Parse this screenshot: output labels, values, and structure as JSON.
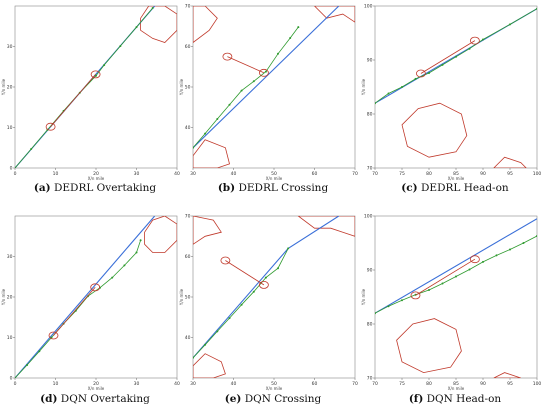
{
  "colors": {
    "reference": "#3a6fd8",
    "trajectory": "#2e9a2e",
    "dots": "#2e9a2e",
    "obstacle": "#c0392b",
    "encounter": "#c0392b"
  },
  "chart_data": [
    {
      "type": "line",
      "caption_tag": "(a)",
      "caption": "DEDRL Overtaking",
      "xlabel": "X/n mile",
      "ylabel": "Y/n mile",
      "xlim": [
        0,
        40
      ],
      "ylim": [
        0,
        40
      ],
      "xticks": [
        "0",
        "10",
        "20",
        "30",
        "40"
      ],
      "yticks": [
        "0",
        "10",
        "20",
        "30"
      ],
      "series": [
        {
          "role": "reference",
          "x": [
            0,
            34.5
          ],
          "y": [
            0,
            40
          ]
        },
        {
          "role": "trajectory",
          "x": [
            0,
            4,
            8,
            12,
            16,
            20,
            22,
            26,
            30,
            34
          ],
          "y": [
            0,
            4.7,
            9.4,
            14.1,
            18.6,
            22.8,
            25.4,
            30.1,
            34.8,
            39.5
          ]
        },
        {
          "role": "encounter",
          "x": [
            8.8,
            19.9
          ],
          "y": [
            10.2,
            23.1
          ]
        }
      ],
      "encounter_circles": [
        [
          8.8,
          10.2
        ],
        [
          19.9,
          23.1
        ]
      ],
      "obstacles": [
        [
          [
            31,
            37
          ],
          [
            33,
            40
          ],
          [
            37,
            40
          ],
          [
            40,
            38
          ],
          [
            40,
            34
          ],
          [
            37,
            31
          ],
          [
            34,
            32
          ],
          [
            31,
            34
          ]
        ]
      ]
    },
    {
      "type": "line",
      "caption_tag": "(b)",
      "caption": "DEDRL Crossing",
      "xlabel": "X/n mile",
      "ylabel": "Y/n mile",
      "xlim": [
        30,
        70
      ],
      "ylim": [
        30,
        70
      ],
      "xticks": [
        "30",
        "40",
        "50",
        "60",
        "70"
      ],
      "yticks": [
        "40",
        "50",
        "60",
        "70"
      ],
      "series": [
        {
          "role": "reference",
          "x": [
            30,
            66
          ],
          "y": [
            35,
            70
          ]
        },
        {
          "role": "trajectory",
          "x": [
            30,
            33,
            36,
            39,
            42,
            45,
            48,
            51,
            54,
            56
          ],
          "y": [
            35,
            38.5,
            42.1,
            45.6,
            49.1,
            51.4,
            53.8,
            58.2,
            62.1,
            64.8
          ]
        },
        {
          "role": "encounter",
          "x": [
            38.5,
            47.5
          ],
          "y": [
            57.5,
            53.5
          ]
        }
      ],
      "encounter_circles": [
        [
          38.5,
          57.5
        ],
        [
          47.5,
          53.5
        ]
      ],
      "obstacles": [
        [
          [
            30,
            61
          ],
          [
            34,
            64
          ],
          [
            36,
            67
          ],
          [
            33,
            70
          ],
          [
            30,
            70
          ]
        ],
        [
          [
            60,
            70
          ],
          [
            63,
            67
          ],
          [
            67,
            68
          ],
          [
            70,
            66
          ],
          [
            70,
            70
          ]
        ],
        [
          [
            30,
            33
          ],
          [
            33,
            37
          ],
          [
            38,
            35
          ],
          [
            39,
            31
          ],
          [
            36,
            30
          ],
          [
            30,
            30
          ]
        ]
      ]
    },
    {
      "type": "line",
      "caption_tag": "(c)",
      "caption": "DEDRL Head-on",
      "xlabel": "X/n mile",
      "ylabel": "Y/n mile",
      "xlim": [
        70,
        100
      ],
      "ylim": [
        70,
        100
      ],
      "xticks": [
        "70",
        "75",
        "80",
        "85",
        "90",
        "95",
        "100"
      ],
      "yticks": [
        "70",
        "80",
        "90",
        "100"
      ],
      "series": [
        {
          "role": "reference",
          "x": [
            70,
            100
          ],
          "y": [
            82,
            99.5
          ]
        },
        {
          "role": "trajectory",
          "x": [
            70,
            72.5,
            75,
            77.5,
            80,
            82.5,
            85,
            87.5,
            90,
            95,
            100
          ],
          "y": [
            82,
            83.8,
            85,
            86.5,
            87.6,
            89.1,
            90.6,
            92.1,
            93.8,
            96.6,
            99.5
          ]
        },
        {
          "role": "encounter",
          "x": [
            78.5,
            88.5
          ],
          "y": [
            87.5,
            93.6
          ]
        }
      ],
      "encounter_circles": [
        [
          78.5,
          87.5
        ],
        [
          88.5,
          93.6
        ]
      ],
      "obstacles": [
        [
          [
            75,
            78
          ],
          [
            78,
            81
          ],
          [
            82,
            82
          ],
          [
            86,
            80
          ],
          [
            87,
            76
          ],
          [
            85,
            73
          ],
          [
            80,
            72
          ],
          [
            76,
            74
          ]
        ],
        [
          [
            92,
            70
          ],
          [
            94,
            72
          ],
          [
            97,
            71
          ],
          [
            98,
            70
          ]
        ]
      ]
    },
    {
      "type": "line",
      "caption_tag": "(d)",
      "caption": "DQN Overtaking",
      "xlabel": "X/n mile",
      "ylabel": "Y/n mile",
      "xlim": [
        0,
        40
      ],
      "ylim": [
        0,
        40
      ],
      "xticks": [
        "0",
        "10",
        "20",
        "30",
        "40"
      ],
      "yticks": [
        "0",
        "10",
        "20",
        "30"
      ],
      "series": [
        {
          "role": "reference",
          "x": [
            0,
            34.5
          ],
          "y": [
            0,
            40
          ]
        },
        {
          "role": "trajectory",
          "x": [
            0,
            3,
            6,
            9,
            12,
            15,
            18,
            21,
            24,
            27,
            30,
            31
          ],
          "y": [
            0,
            3.2,
            6.6,
            10,
            13.4,
            16.6,
            20.2,
            22.3,
            24.8,
            27.8,
            31,
            34
          ]
        },
        {
          "role": "encounter",
          "x": [
            9.5,
            19.8
          ],
          "y": [
            10.5,
            22.4
          ]
        }
      ],
      "encounter_circles": [
        [
          9.5,
          10.5
        ],
        [
          19.8,
          22.4
        ]
      ],
      "obstacles": [
        [
          [
            32,
            36
          ],
          [
            34,
            39
          ],
          [
            37,
            40
          ],
          [
            40,
            38
          ],
          [
            40,
            34
          ],
          [
            37,
            31
          ],
          [
            34,
            31
          ],
          [
            32,
            33
          ]
        ]
      ]
    },
    {
      "type": "line",
      "caption_tag": "(e)",
      "caption": "DQN Crossing",
      "xlabel": "X/n mile",
      "ylabel": "Y/n mile",
      "xlim": [
        30,
        70
      ],
      "ylim": [
        30,
        70
      ],
      "xticks": [
        "30",
        "40",
        "50",
        "60",
        "70"
      ],
      "yticks": [
        "40",
        "50",
        "60",
        "70"
      ],
      "series": [
        {
          "role": "reference",
          "x": [
            30,
            53.5,
            66
          ],
          "y": [
            35,
            62,
            70
          ]
        },
        {
          "role": "trajectory",
          "x": [
            30,
            33,
            36,
            39,
            42,
            45,
            48,
            51,
            53.5
          ],
          "y": [
            35,
            38.2,
            41.5,
            44.8,
            48.1,
            51.3,
            54.8,
            57.1,
            62
          ]
        },
        {
          "role": "encounter",
          "x": [
            38,
            47.5
          ],
          "y": [
            59,
            53
          ]
        }
      ],
      "encounter_circles": [
        [
          38,
          59
        ],
        [
          47.5,
          53
        ]
      ],
      "obstacles": [
        [
          [
            30,
            63
          ],
          [
            33,
            65
          ],
          [
            37,
            66
          ],
          [
            35,
            69
          ],
          [
            30,
            70
          ]
        ],
        [
          [
            56,
            70
          ],
          [
            60,
            67
          ],
          [
            64,
            67
          ],
          [
            67,
            66
          ],
          [
            70,
            65
          ],
          [
            70,
            70
          ]
        ],
        [
          [
            30,
            33
          ],
          [
            33,
            36
          ],
          [
            37,
            34
          ],
          [
            38,
            31
          ],
          [
            35,
            30
          ],
          [
            30,
            30
          ]
        ]
      ]
    },
    {
      "type": "line",
      "caption_tag": "(f)",
      "caption": "DQN Head-on",
      "xlabel": "X/n mile",
      "ylabel": "Y/n mile",
      "xlim": [
        70,
        100
      ],
      "ylim": [
        70,
        100
      ],
      "xticks": [
        "70",
        "75",
        "80",
        "85",
        "90",
        "95",
        "100"
      ],
      "yticks": [
        "70",
        "80",
        "90",
        "100"
      ],
      "series": [
        {
          "role": "reference",
          "x": [
            70,
            100
          ],
          "y": [
            82,
            99.5
          ]
        },
        {
          "role": "trajectory",
          "x": [
            70,
            72.5,
            75,
            77.5,
            80,
            82.5,
            85,
            87.5,
            90,
            92.5,
            95,
            97.5,
            100
          ],
          "y": [
            82,
            83.3,
            84.4,
            85.4,
            86.3,
            87.5,
            88.8,
            90.1,
            91.5,
            92.7,
            93.8,
            95,
            96.3
          ]
        },
        {
          "role": "encounter",
          "x": [
            77.5,
            88.5
          ],
          "y": [
            85.3,
            92
          ]
        }
      ],
      "encounter_circles": [
        [
          77.5,
          85.3
        ],
        [
          88.5,
          92
        ]
      ],
      "obstacles": [
        [
          [
            74,
            77
          ],
          [
            77,
            80
          ],
          [
            81,
            81
          ],
          [
            85,
            79
          ],
          [
            86,
            75
          ],
          [
            84,
            72
          ],
          [
            79,
            71
          ],
          [
            75,
            73
          ]
        ],
        [
          [
            92,
            70
          ],
          [
            94,
            71
          ],
          [
            97,
            70
          ]
        ]
      ]
    }
  ]
}
